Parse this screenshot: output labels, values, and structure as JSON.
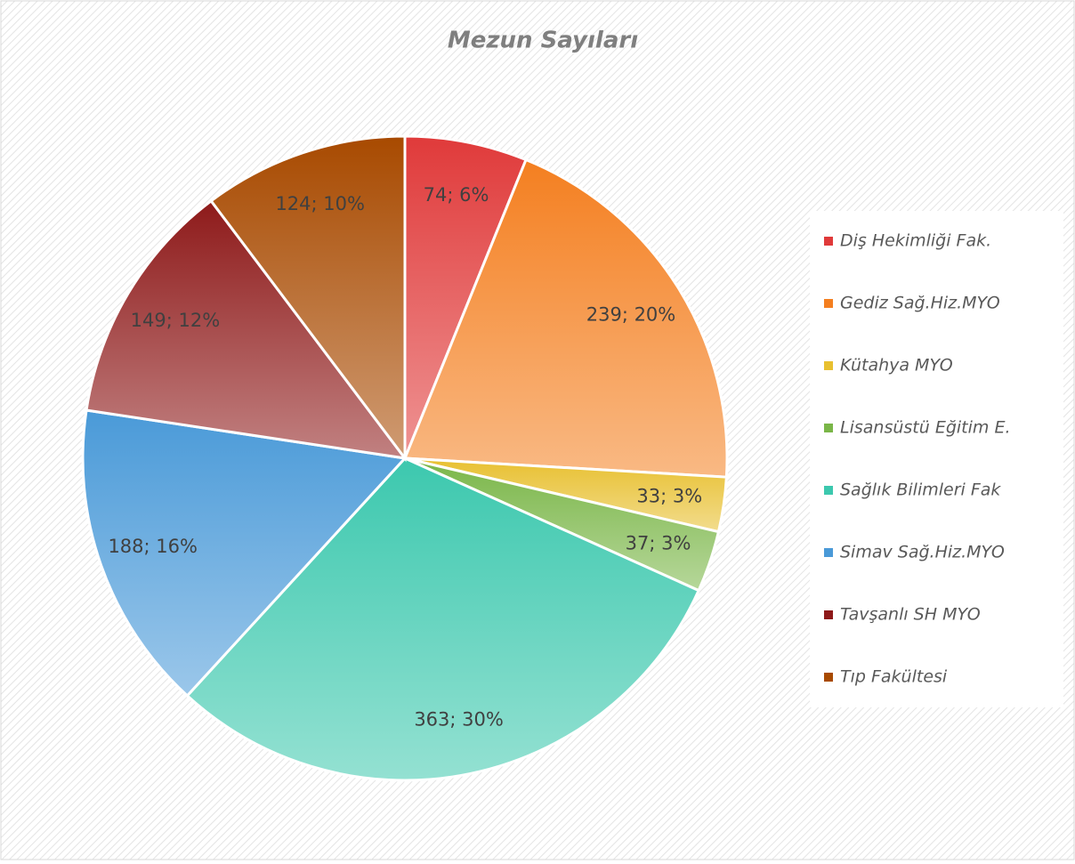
{
  "chart_data": {
    "type": "pie",
    "title": "Mezun Sayıları",
    "categories": [
      "Diş Hekimliği Fak.",
      "Gediz Sağ.Hiz.MYO",
      "Kütahya MYO",
      "Lisansüstü Eğitim E.",
      "Sağlık Bilimleri Fak",
      "Simav Sağ.Hiz.MYO",
      "Tavşanlı SH MYO",
      "Tıp Fakültesi"
    ],
    "values": [
      74,
      239,
      33,
      37,
      363,
      188,
      149,
      124
    ],
    "value_labels": [
      "74; 6%",
      "239; 20%",
      "33; 3%",
      "37; 3%",
      "363; 30%",
      "188; 16%",
      "149; 12%",
      "124; 10%"
    ],
    "colors": [
      "#e03a3a",
      "#f47f20",
      "#e8c030",
      "#7ab648",
      "#3cc8ae",
      "#4a9ad8",
      "#8e1a1a",
      "#a84a00"
    ],
    "legend": "right"
  }
}
